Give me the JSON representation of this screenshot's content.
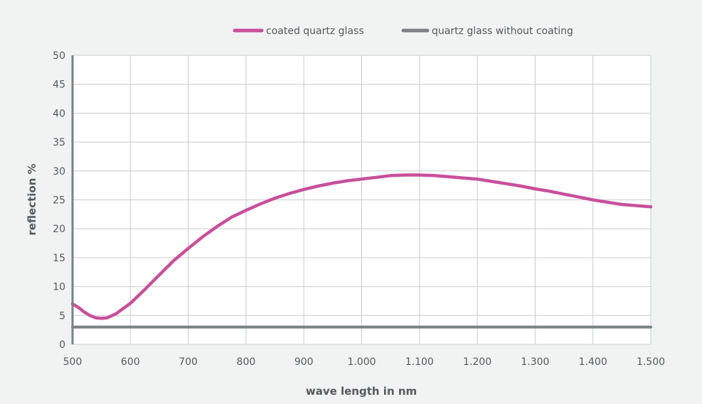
{
  "chart_data": {
    "type": "line",
    "title": "",
    "xlabel": "wave length in nm",
    "ylabel": "reflection %",
    "xlim": [
      500,
      1500
    ],
    "ylim": [
      0,
      50
    ],
    "x_ticks": [
      500,
      600,
      700,
      800,
      900,
      1000,
      1100,
      1200,
      1300,
      1400,
      1500
    ],
    "x_tick_labels": [
      "500",
      "600",
      "700",
      "800",
      "900",
      "1.000",
      "1.100",
      "1.200",
      "1.300",
      "1.400",
      "1.500"
    ],
    "y_ticks": [
      0,
      5,
      10,
      15,
      20,
      25,
      30,
      35,
      40,
      45,
      50
    ],
    "y_tick_labels": [
      "0",
      "5",
      "10",
      "15",
      "20",
      "25",
      "30",
      "35",
      "40",
      "45",
      "50"
    ],
    "grid": true,
    "legend": "top-center",
    "series": [
      {
        "name": "coated quartz glass",
        "color": "#c8509a",
        "x": [
          500,
          510,
          520,
          530,
          540,
          550,
          560,
          575,
          600,
          625,
          650,
          675,
          700,
          725,
          750,
          775,
          800,
          825,
          850,
          875,
          900,
          925,
          950,
          975,
          1000,
          1025,
          1050,
          1075,
          1100,
          1125,
          1150,
          1175,
          1200,
          1225,
          1250,
          1275,
          1300,
          1325,
          1350,
          1375,
          1400,
          1425,
          1450,
          1475,
          1500
        ],
        "y": [
          7.0,
          6.4,
          5.6,
          5.0,
          4.6,
          4.5,
          4.6,
          5.3,
          7.1,
          9.5,
          12.0,
          14.5,
          16.6,
          18.6,
          20.4,
          22.0,
          23.2,
          24.3,
          25.3,
          26.1,
          26.8,
          27.4,
          27.9,
          28.3,
          28.6,
          28.9,
          29.2,
          29.3,
          29.3,
          29.2,
          29.0,
          28.8,
          28.6,
          28.2,
          27.8,
          27.4,
          26.9,
          26.5,
          26.0,
          25.5,
          25.0,
          24.6,
          24.2,
          24.0,
          23.8
        ]
      },
      {
        "name": "quartz glass without coating",
        "color": "#7b8284",
        "x": [
          500,
          1500
        ],
        "y": [
          3.0,
          3.0
        ]
      }
    ]
  }
}
